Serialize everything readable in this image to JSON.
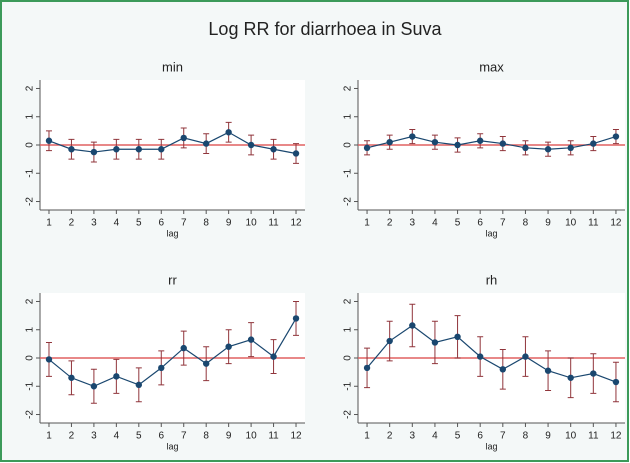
{
  "title": "Log RR for diarrhoea in Suva",
  "chart_data": [
    {
      "type": "line",
      "title": "min",
      "xlabel": "lag",
      "x": [
        1,
        2,
        3,
        4,
        5,
        6,
        7,
        8,
        9,
        10,
        11,
        12
      ],
      "values": [
        0.15,
        -0.15,
        -0.25,
        -0.15,
        -0.15,
        -0.15,
        0.25,
        0.05,
        0.45,
        0.0,
        -0.15,
        -0.3
      ],
      "errors": [
        0.35,
        0.35,
        0.35,
        0.35,
        0.35,
        0.35,
        0.35,
        0.35,
        0.35,
        0.35,
        0.35,
        0.35
      ],
      "color": "#1a476f",
      "error_color": "#90353b",
      "reference_line": 0,
      "reference_color": "#e06060",
      "xlim": [
        0.6,
        12.4
      ],
      "xticks": [
        1,
        2,
        3,
        4,
        5,
        6,
        7,
        8,
        9,
        10,
        11,
        12
      ],
      "ylim": [
        -2.3,
        2.3
      ],
      "yticks": [
        -2,
        -1,
        0,
        1,
        2
      ]
    },
    {
      "type": "line",
      "title": "max",
      "xlabel": "lag",
      "x": [
        1,
        2,
        3,
        4,
        5,
        6,
        7,
        8,
        9,
        10,
        11,
        12
      ],
      "values": [
        -0.1,
        0.1,
        0.3,
        0.1,
        0.0,
        0.15,
        0.05,
        -0.1,
        -0.15,
        -0.1,
        0.05,
        0.3
      ],
      "errors": [
        0.25,
        0.25,
        0.25,
        0.25,
        0.25,
        0.25,
        0.25,
        0.25,
        0.25,
        0.25,
        0.25,
        0.25
      ],
      "color": "#1a476f",
      "error_color": "#90353b",
      "reference_line": 0,
      "reference_color": "#e06060",
      "xlim": [
        0.6,
        12.4
      ],
      "xticks": [
        1,
        2,
        3,
        4,
        5,
        6,
        7,
        8,
        9,
        10,
        11,
        12
      ],
      "ylim": [
        -2.3,
        2.3
      ],
      "yticks": [
        -2,
        -1,
        0,
        1,
        2
      ]
    },
    {
      "type": "line",
      "title": "rr",
      "xlabel": "lag",
      "x": [
        1,
        2,
        3,
        4,
        5,
        6,
        7,
        8,
        9,
        10,
        11,
        12
      ],
      "values": [
        -0.05,
        -0.7,
        -1.0,
        -0.65,
        -0.95,
        -0.35,
        0.35,
        -0.2,
        0.4,
        0.65,
        0.05,
        1.4
      ],
      "errors": [
        0.6,
        0.6,
        0.6,
        0.6,
        0.6,
        0.6,
        0.6,
        0.6,
        0.6,
        0.6,
        0.6,
        0.6
      ],
      "color": "#1a476f",
      "error_color": "#90353b",
      "reference_line": 0,
      "reference_color": "#e06060",
      "xlim": [
        0.6,
        12.4
      ],
      "xticks": [
        1,
        2,
        3,
        4,
        5,
        6,
        7,
        8,
        9,
        10,
        11,
        12
      ],
      "ylim": [
        -2.3,
        2.3
      ],
      "yticks": [
        -2,
        -1,
        0,
        1,
        2
      ]
    },
    {
      "type": "line",
      "title": "rh",
      "xlabel": "lag",
      "x": [
        1,
        2,
        3,
        4,
        5,
        6,
        7,
        8,
        9,
        10,
        11,
        12
      ],
      "values": [
        -0.35,
        0.6,
        1.15,
        0.55,
        0.75,
        0.05,
        -0.4,
        0.05,
        -0.45,
        -0.7,
        -0.55,
        -0.85
      ],
      "errors": [
        0.7,
        0.7,
        0.75,
        0.75,
        0.75,
        0.7,
        0.7,
        0.7,
        0.7,
        0.7,
        0.7,
        0.7
      ],
      "color": "#1a476f",
      "error_color": "#90353b",
      "reference_line": 0,
      "reference_color": "#e06060",
      "xlim": [
        0.6,
        12.4
      ],
      "xticks": [
        1,
        2,
        3,
        4,
        5,
        6,
        7,
        8,
        9,
        10,
        11,
        12
      ],
      "ylim": [
        -2.3,
        2.3
      ],
      "yticks": [
        -2,
        -1,
        0,
        1,
        2
      ]
    }
  ]
}
